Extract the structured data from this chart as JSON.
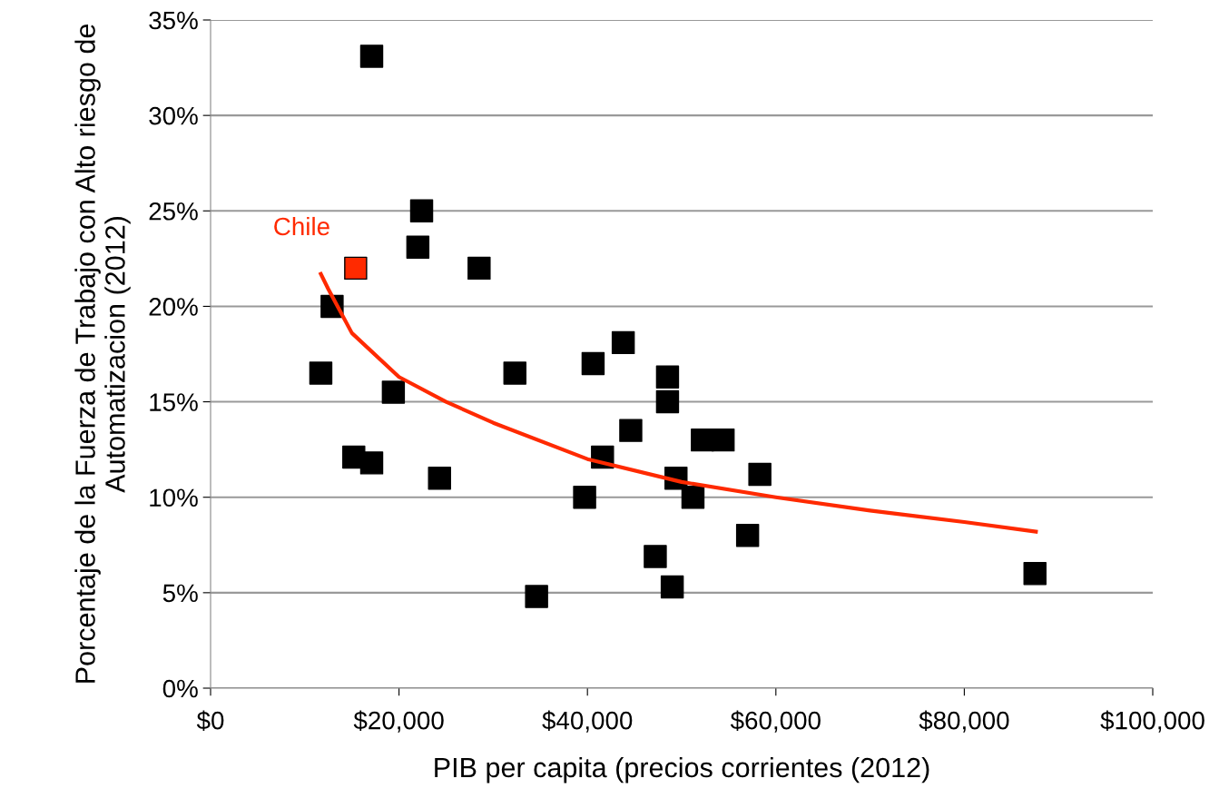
{
  "chart_data": {
    "type": "scatter",
    "xlabel": "PIB per capita (precios corrientes (2012)",
    "ylabel": "Porcentaje de la Fuerza de Trabajo con Alto riesgo de Automatizacion (2012)",
    "series": [
      {
        "color": "#000000",
        "marker": "square",
        "x": [
          11700,
          12900,
          15200,
          17100,
          17100,
          19400,
          22000,
          22400,
          24300,
          28500,
          32300,
          34600,
          39700,
          40600,
          41600,
          43800,
          44600,
          47200,
          48500,
          48500,
          49000,
          49400,
          51200,
          52200,
          54400,
          57000,
          58300,
          87500
        ],
        "values": [
          16.5,
          20.0,
          12.1,
          11.8,
          33.1,
          15.5,
          23.1,
          25.0,
          11.0,
          22.0,
          16.5,
          4.8,
          10.0,
          17.0,
          12.1,
          18.1,
          13.5,
          6.9,
          16.3,
          15.0,
          5.3,
          11.0,
          10.0,
          13.0,
          13.0,
          8.0,
          11.2,
          6.0
        ]
      },
      {
        "name": "Chile",
        "color": "#ff2a00",
        "marker": "square",
        "x": [
          15400
        ],
        "values": [
          22.0
        ]
      },
      {
        "type": "line",
        "color": "#ff2a00",
        "marker": "none",
        "x": [
          11700,
          12500,
          15000,
          20000,
          25000,
          30000,
          40000,
          50000,
          60000,
          70000,
          80000,
          87600
        ],
        "values": [
          21.7,
          20.9,
          18.6,
          16.3,
          15.0,
          13.9,
          12.0,
          10.8,
          10.0,
          9.3,
          8.7,
          8.2
        ]
      }
    ],
    "xlim": [
      0,
      100000
    ],
    "xticks": [
      {
        "value": 0,
        "label": "$0"
      },
      {
        "value": 20000,
        "label": "$20,000"
      },
      {
        "value": 40000,
        "label": "$40,000"
      },
      {
        "value": 60000,
        "label": "$60,000"
      },
      {
        "value": 80000,
        "label": "$80,000"
      },
      {
        "value": 100000,
        "label": "$100,000"
      }
    ],
    "ylim": [
      0,
      35
    ],
    "yticks": [
      {
        "value": 0,
        "label": "0%"
      },
      {
        "value": 5,
        "label": "5%"
      },
      {
        "value": 10,
        "label": "10%"
      },
      {
        "value": 15,
        "label": "15%"
      },
      {
        "value": 20,
        "label": "20%"
      },
      {
        "value": 25,
        "label": "25%"
      },
      {
        "value": 30,
        "label": "30%"
      },
      {
        "value": 35,
        "label": "35%"
      }
    ],
    "grid": "y",
    "legend": false
  }
}
